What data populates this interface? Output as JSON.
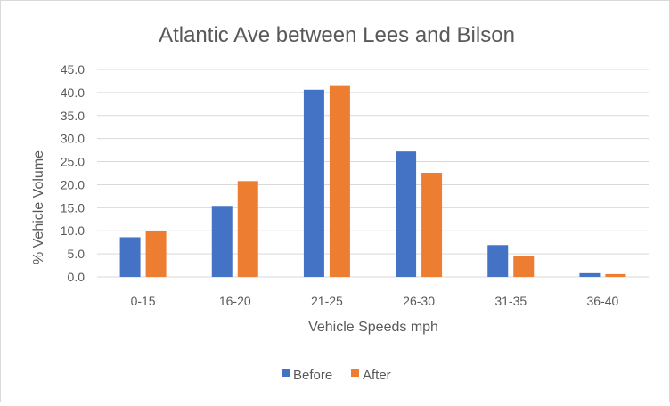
{
  "chart_data": {
    "type": "bar",
    "title": "Atlantic Ave between Lees and Bilson",
    "xlabel": "Vehicle Speeds mph",
    "ylabel": "% Vehicle Volume",
    "categories": [
      "0-15",
      "16-20",
      "21-25",
      "26-30",
      "31-35",
      "36-40"
    ],
    "series": [
      {
        "name": "Before",
        "color": "#4472C4",
        "values": [
          8.6,
          15.4,
          40.6,
          27.2,
          6.9,
          0.8
        ]
      },
      {
        "name": "After",
        "color": "#ED7D31",
        "values": [
          10.0,
          20.8,
          41.4,
          22.6,
          4.6,
          0.6
        ]
      }
    ],
    "ylim": [
      0,
      45
    ],
    "yticks": [
      "0.0",
      "5.0",
      "10.0",
      "15.0",
      "20.0",
      "25.0",
      "30.0",
      "35.0",
      "40.0",
      "45.0"
    ],
    "grid": true,
    "legend_position": "bottom"
  }
}
